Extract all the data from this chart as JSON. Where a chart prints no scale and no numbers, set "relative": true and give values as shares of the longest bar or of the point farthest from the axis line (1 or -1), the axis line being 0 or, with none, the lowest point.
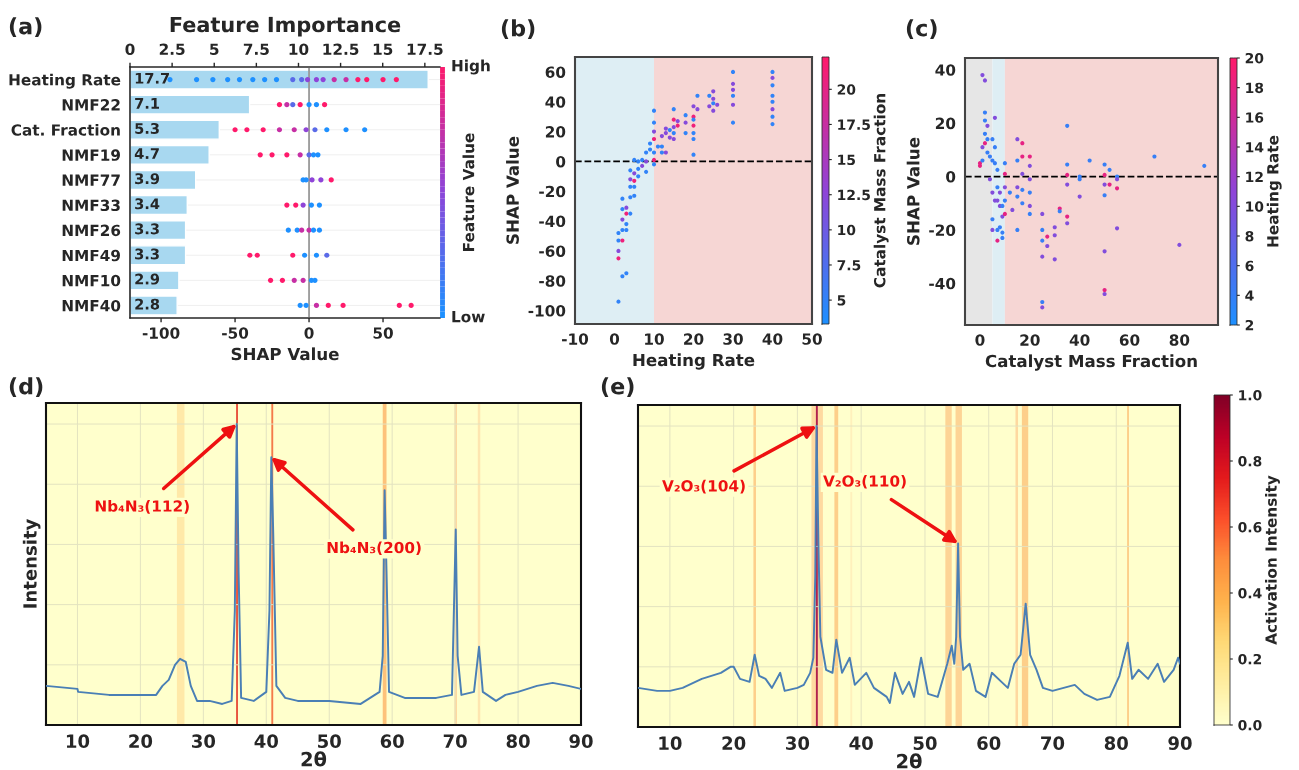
{
  "chart_data": [
    {
      "type": "bar",
      "orientation": "horizontal",
      "title": "(a)",
      "x2label": "Feature Importance",
      "xlabel": "SHAP Value",
      "clabel": "Feature Value",
      "categories": [
        "Heating Rate",
        "NMF22",
        "Cat. Fraction",
        "NMF19",
        "NMF77",
        "NMF33",
        "NMF26",
        "NMF49",
        "NMF10",
        "NMF40"
      ],
      "series": [
        {
          "type": "bar",
          "axis": "x2",
          "color": "#a8d8f0",
          "values": [
            17.7,
            7.1,
            5.3,
            4.7,
            3.9,
            3.4,
            3.3,
            3.3,
            2.9,
            2.8
          ],
          "value_labels": [
            "17.7",
            "7.1",
            "5.3",
            "4.7",
            "3.9",
            "3.4",
            "3.3",
            "3.3",
            "2.9",
            "2.8"
          ]
        },
        {
          "type": "scatter",
          "x": [
            "Heating Rate",
            "Heating Rate",
            "Heating Rate",
            "Heating Rate",
            "Heating Rate",
            "Heating Rate",
            "Heating Rate",
            "Heating Rate",
            "Heating Rate",
            "Heating Rate",
            "Heating Rate",
            "Heating Rate",
            "Heating Rate",
            "Heating Rate",
            "Heating Rate",
            "Heating Rate",
            "Heating Rate",
            "Heating Rate",
            "Heating Rate",
            "NMF22",
            "NMF22",
            "NMF22",
            "NMF22",
            "NMF22",
            "NMF22",
            "NMF22",
            "Cat. Fraction",
            "Cat. Fraction",
            "Cat. Fraction",
            "Cat. Fraction",
            "Cat. Fraction",
            "Cat. Fraction",
            "Cat. Fraction",
            "Cat. Fraction",
            "Cat. Fraction",
            "Cat. Fraction",
            "NMF19",
            "NMF19",
            "NMF19",
            "NMF19",
            "NMF19",
            "NMF19",
            "NMF19",
            "NMF77",
            "NMF77",
            "NMF77",
            "NMF77",
            "NMF77",
            "NMF33",
            "NMF33",
            "NMF33",
            "NMF33",
            "NMF33",
            "NMF26",
            "NMF26",
            "NMF26",
            "NMF26",
            "NMF26",
            "NMF26",
            "NMF49",
            "NMF49",
            "NMF49",
            "NMF49",
            "NMF49",
            "NMF49",
            "NMF10",
            "NMF10",
            "NMF10",
            "NMF10",
            "NMF10",
            "NMF10",
            "NMF40",
            "NMF40",
            "NMF40",
            "NMF40",
            "NMF40",
            "NMF40",
            "NMF40"
          ],
          "values": [
            -94,
            -76,
            -65,
            -55,
            -47,
            -38,
            -30,
            -22,
            -11,
            -5,
            -1,
            5,
            9.5,
            17,
            25,
            33,
            39,
            50,
            59,
            -20,
            -15,
            -11,
            -6,
            0,
            5,
            10.5,
            -50,
            -42,
            -31,
            -20,
            -10,
            -2,
            4,
            12,
            25,
            37.6,
            -33,
            -25,
            -15,
            -6,
            0,
            3,
            6,
            -4,
            -2,
            2,
            8,
            15,
            -15,
            -9,
            -4,
            1.6,
            7,
            -14,
            -8,
            -5,
            0,
            3,
            7,
            -40,
            -35,
            -11,
            -3,
            5,
            12,
            -26,
            -18,
            -10,
            -4,
            1.6,
            4,
            -6,
            -2,
            5,
            13,
            23,
            61,
            69
          ],
          "colors": [
            "#1e90ff",
            "#1e90ff",
            "#1e90ff",
            "#1e90ff",
            "#1e90ff",
            "#1e90ff",
            "#1e90ff",
            "#1e90ff",
            "#5a6ae8",
            "#5a6ae8",
            "#8f44d8",
            "#8f44d8",
            "#8f44d8",
            "#c72fa5",
            "#c72fa5",
            "#ff1a6b",
            "#ff1a6b",
            "#ff1a6b",
            "#ff1a6b",
            "#ff1a6b",
            "#c72fa5",
            "#5a6ae8",
            "#ff1a6b",
            "#1e90ff",
            "#1e90ff",
            "#ff1a6b",
            "#ff1a6b",
            "#ff1a6b",
            "#ff1a6b",
            "#c72fa5",
            "#c72fa5",
            "#8f44d8",
            "#5a6ae8",
            "#1e90ff",
            "#1e90ff",
            "#1e90ff",
            "#ff1a6b",
            "#ff1a6b",
            "#ff1a6b",
            "#c72fa5",
            "#5a6ae8",
            "#1e90ff",
            "#1e90ff",
            "#1e90ff",
            "#1e90ff",
            "#8f44d8",
            "#8f44d8",
            "#ff1a6b",
            "#ff1a6b",
            "#ff1a6b",
            "#8f44d8",
            "#1e90ff",
            "#1e90ff",
            "#1e90ff",
            "#1e90ff",
            "#c72fa5",
            "#c72fa5",
            "#1e90ff",
            "#1e90ff",
            "#ff1a6b",
            "#ff1a6b",
            "#ff1a6b",
            "#1e90ff",
            "#1e90ff",
            "#5a6ae8",
            "#ff1a6b",
            "#ff1a6b",
            "#c72fa5",
            "#c72fa5",
            "#1e90ff",
            "#1e90ff",
            "#1e90ff",
            "#1e90ff",
            "#c72fa5",
            "#ff1a6b",
            "#ff1a6b",
            "#ff1a6b",
            "#ff1a6b"
          ]
        }
      ],
      "xlim": [
        -121,
        88.5
      ],
      "xticks": [
        -100,
        -50,
        0,
        50
      ],
      "x2lim": [
        0,
        18.4
      ],
      "x2ticks": [
        0,
        2.5,
        5,
        7.5,
        10,
        12.5,
        15,
        17.5
      ],
      "annotations": [
        "High",
        "Low"
      ],
      "ref_lines": [
        {
          "axis": "x",
          "value": 0,
          "color": "#999999"
        }
      ],
      "grid": "y"
    },
    {
      "type": "scatter",
      "title": "(b)",
      "xlabel": "Heating Rate",
      "ylabel": "SHAP Value",
      "clabel": "Catalyst Mass Fraction",
      "marker": "circle",
      "x": [
        1,
        1,
        1,
        1,
        1,
        2,
        2,
        2,
        2,
        2,
        2,
        3,
        3,
        3,
        3,
        3,
        4,
        4,
        4,
        4,
        4,
        5,
        5,
        5,
        5,
        5,
        6,
        6,
        6,
        7,
        7,
        8,
        8,
        8,
        9,
        9,
        10,
        10,
        10,
        10,
        10,
        10,
        10,
        11,
        12,
        12,
        12,
        13,
        13,
        13,
        14,
        14,
        15,
        15,
        15,
        15,
        15,
        16,
        16,
        18,
        18,
        18,
        20,
        20,
        20,
        20,
        20,
        20,
        20,
        21,
        21,
        24,
        24,
        25,
        25,
        25,
        25,
        26,
        30,
        30,
        30,
        30,
        30,
        30,
        40,
        40,
        40,
        40,
        40,
        40,
        40,
        40
      ],
      "values": [
        -48,
        -53,
        -60,
        -65,
        -94,
        -25,
        -32,
        -39,
        -46,
        -53,
        -77,
        -31,
        -35,
        -42,
        -46,
        -75,
        -6,
        -12,
        -17,
        -24,
        -35,
        1,
        -8,
        -13,
        -17,
        -23,
        0,
        -5,
        -10,
        1,
        -3,
        6,
        0,
        -7,
        12,
        8,
        34,
        26,
        20,
        15,
        6,
        1,
        -2,
        10,
        17,
        10,
        6,
        22,
        19,
        6,
        21,
        16,
        35,
        28,
        23,
        19,
        15,
        27,
        24,
        31,
        26,
        19,
        37,
        30,
        28,
        24,
        19,
        15,
        4.5,
        44,
        35,
        44,
        37,
        47,
        42,
        39,
        34,
        38,
        60,
        52,
        48,
        44,
        38,
        26,
        60,
        56,
        51,
        44,
        40,
        35,
        30,
        25
      ],
      "cvalues": [
        5,
        5,
        12,
        21,
        5,
        5,
        5,
        12,
        5,
        21,
        5,
        12,
        21,
        5,
        5,
        5,
        5,
        12,
        5,
        5,
        5,
        5,
        12,
        21,
        5,
        5,
        5,
        5,
        5,
        5,
        12,
        5,
        12,
        5,
        5,
        5,
        5,
        5,
        12,
        21,
        5,
        21,
        5,
        5,
        12,
        5,
        5,
        12,
        12,
        12,
        5,
        12,
        5,
        21,
        12,
        5,
        12,
        12,
        21,
        5,
        12,
        5,
        12,
        21,
        5,
        21,
        5,
        5,
        5,
        5,
        12,
        5,
        12,
        12,
        12,
        5,
        12,
        12,
        5,
        12,
        12,
        5,
        12,
        5,
        5,
        12,
        5,
        5,
        5,
        12,
        5,
        5
      ],
      "xlim": [
        -10,
        50
      ],
      "xticks": [
        -10,
        0,
        10,
        20,
        30,
        40,
        50
      ],
      "ylim": [
        -109,
        70
      ],
      "yticks": [
        -100,
        -80,
        -60,
        -40,
        -20,
        0,
        20,
        40,
        60
      ],
      "clim": [
        3.3,
        22.3
      ],
      "cticks": [
        5,
        7.5,
        10,
        12.5,
        15,
        17.5,
        20
      ],
      "bands": [
        {
          "axis": "x",
          "from": -10,
          "to": 10,
          "color": "#deeef4"
        },
        {
          "axis": "x",
          "from": 10,
          "to": 50,
          "color": "#f6d6d4"
        }
      ],
      "ref_lines": [
        {
          "axis": "y",
          "value": 0,
          "color": "#000000",
          "line_style": "dashed"
        }
      ]
    },
    {
      "type": "scatter",
      "title": "(c)",
      "xlabel": "Catalyst Mass Fraction",
      "ylabel": "SHAP Value",
      "clabel": "Heating Rate",
      "marker": "circle",
      "x": [
        0,
        0,
        1,
        1,
        1,
        2,
        2,
        2,
        2,
        2,
        3,
        3,
        3,
        4,
        4,
        5,
        5,
        5,
        5,
        5,
        6,
        6,
        6,
        6,
        7,
        7,
        7,
        7,
        7,
        8,
        8,
        8,
        9,
        9,
        9,
        9,
        10,
        10,
        10,
        10,
        10,
        12,
        13,
        15,
        15,
        15,
        15,
        15,
        17,
        17,
        17,
        17,
        17,
        20,
        20,
        20,
        20,
        20,
        20,
        25,
        25,
        25,
        25,
        25,
        25,
        27,
        27,
        30,
        30,
        30,
        32,
        32,
        35,
        35,
        35,
        35,
        35,
        35,
        40,
        40,
        40,
        44,
        50,
        50,
        50,
        50,
        50,
        50,
        50,
        52,
        52,
        55,
        55,
        55,
        55,
        70,
        80,
        90
      ],
      "values": [
        4,
        5,
        38,
        11,
        6,
        36,
        24,
        21,
        16,
        12.5,
        19,
        14,
        9,
        7.5,
        -1,
        14,
        6,
        -6,
        -16,
        -20,
        22,
        11,
        5,
        -9,
        2.5,
        -4,
        -9,
        -20,
        -24,
        -6,
        -11,
        -19,
        -11,
        -15,
        -21,
        -23,
        5,
        1,
        -4,
        -9,
        -14,
        -6,
        -12.5,
        14,
        6,
        -4,
        -7.5,
        -20,
        12.5,
        7.5,
        1,
        -5,
        -10,
        7.5,
        4,
        -1,
        -6,
        -11,
        -14,
        -14,
        -20,
        -24,
        -30,
        -47,
        -49,
        -22.5,
        -26,
        -19,
        -22,
        -31,
        -12,
        -13,
        19,
        4.5,
        0.6,
        -3,
        -15,
        -17.5,
        0,
        -1,
        -7.5,
        6,
        4.5,
        0.6,
        -3,
        -7,
        -28,
        -42.5,
        -44,
        2.5,
        -3,
        0,
        -1,
        -4.4,
        -19.4,
        7.5,
        -25.6,
        4
      ],
      "cvalues": [
        18,
        18,
        10,
        10,
        4,
        10,
        4,
        4,
        4,
        18,
        10,
        4,
        4,
        4,
        10,
        4,
        4,
        10,
        4,
        10,
        10,
        4,
        4,
        10,
        4,
        4,
        10,
        4,
        18,
        10,
        10,
        4,
        4,
        10,
        4,
        4,
        4,
        18,
        10,
        4,
        18,
        4,
        10,
        10,
        4,
        10,
        4,
        4,
        18,
        18,
        10,
        4,
        4,
        18,
        10,
        10,
        4,
        10,
        4,
        10,
        4,
        4,
        10,
        4,
        10,
        18,
        10,
        10,
        10,
        10,
        18,
        4,
        4,
        4,
        18,
        10,
        18,
        10,
        4,
        4,
        10,
        4,
        4,
        18,
        10,
        4,
        10,
        18,
        10,
        4,
        18,
        4,
        10,
        18,
        10,
        4,
        10,
        4
      ],
      "xlim": [
        -6,
        95.5
      ],
      "xticks": [
        0,
        20,
        40,
        60,
        80
      ],
      "ylim": [
        -55.6,
        44.4
      ],
      "yticks": [
        -40,
        -20,
        0,
        20,
        40
      ],
      "clim": [
        2,
        20
      ],
      "cticks": [
        2,
        4,
        6,
        8,
        10,
        12,
        14,
        16,
        18,
        20
      ],
      "bands": [
        {
          "axis": "x",
          "from": -6,
          "to": 5,
          "color": "#e6e6e6"
        },
        {
          "axis": "x",
          "from": 5,
          "to": 10,
          "color": "#deeef4"
        },
        {
          "axis": "x",
          "from": 10,
          "to": 95.5,
          "color": "#f6d6d4"
        }
      ],
      "ref_lines": [
        {
          "axis": "y",
          "value": 0,
          "color": "#000000",
          "line_style": "dashed"
        }
      ]
    },
    {
      "type": "line",
      "title": "(d)",
      "xlabel": "2θ",
      "ylabel": "Intensity",
      "relative": true,
      "grid": true,
      "x": [
        5,
        10,
        10.1,
        15,
        20,
        22.5,
        23.5,
        24.5,
        25.5,
        26.3,
        27.2,
        28,
        29,
        31,
        33,
        34.5,
        35,
        35.3,
        35.6,
        36,
        38,
        40,
        40.5,
        40.8,
        41.1,
        41.6,
        43,
        45,
        50,
        55,
        58,
        58.5,
        58.8,
        59.1,
        59.5,
        62,
        67,
        69.5,
        70.1,
        70.4,
        71,
        73,
        73.8,
        74.4,
        76.5,
        78,
        80,
        83,
        85.5,
        88,
        90
      ],
      "series": [
        {
          "color": "#4a7fb5",
          "values": [
            0.13,
            0.12,
            0.11,
            0.1,
            0.1,
            0.1,
            0.13,
            0.15,
            0.2,
            0.22,
            0.21,
            0.13,
            0.08,
            0.08,
            0.07,
            0.08,
            0.38,
            1.0,
            0.51,
            0.09,
            0.08,
            0.11,
            0.38,
            0.89,
            0.64,
            0.13,
            0.09,
            0.08,
            0.08,
            0.07,
            0.11,
            0.23,
            0.78,
            0.51,
            0.11,
            0.09,
            0.09,
            0.1,
            0.65,
            0.23,
            0.1,
            0.11,
            0.26,
            0.11,
            0.08,
            0.1,
            0.11,
            0.13,
            0.14,
            0.13,
            0.12
          ]
        }
      ],
      "xlim": [
        5,
        90
      ],
      "xticks": [
        10,
        20,
        30,
        40,
        50,
        60,
        70,
        80,
        90
      ],
      "bands": [
        {
          "axis": "x",
          "from": 25.8,
          "to": 27.0,
          "color": "#ffe9a8"
        },
        {
          "axis": "x",
          "from": 35.2,
          "to": 35.5,
          "color": "#e8503a"
        },
        {
          "axis": "x",
          "from": 40.8,
          "to": 41.1,
          "color": "#f47a4a"
        },
        {
          "axis": "x",
          "from": 58.5,
          "to": 59.1,
          "color": "#fdc27a"
        },
        {
          "axis": "x",
          "from": 69.9,
          "to": 70.3,
          "color": "#fed9a0"
        },
        {
          "axis": "x",
          "from": 73.6,
          "to": 74.0,
          "color": "#fee6b0"
        }
      ],
      "annotations": [
        {
          "text": "Nb₄N₃(112)",
          "x": 35.3,
          "y": 1.0
        },
        {
          "text": "Nb₄N₃(200)",
          "x": 40.8,
          "y": 0.89
        }
      ]
    },
    {
      "type": "line",
      "title": "(e)",
      "xlabel": "2θ",
      "relative": true,
      "grid": true,
      "clabel": "Activation Intensity",
      "x": [
        5,
        8,
        10,
        12,
        15,
        18,
        19.5,
        20,
        21,
        22.5,
        23.3,
        24,
        25,
        26,
        27.3,
        28,
        30,
        31,
        32,
        32.5,
        32.8,
        33,
        33.3,
        33.6,
        34.5,
        35.5,
        36.1,
        37,
        38.2,
        39,
        40.8,
        42,
        44,
        44.5,
        45.3,
        46.5,
        47.5,
        48.3,
        49.4,
        50.5,
        52,
        53.5,
        54.2,
        54.6,
        54.9,
        55.2,
        55.5,
        56,
        57,
        58,
        59.5,
        60.5,
        62,
        63,
        64,
        65,
        65.8,
        66.5,
        67.5,
        68.5,
        70,
        73.5,
        75,
        77,
        79,
        80.5,
        81.8,
        82.5,
        83.5,
        85,
        86.5,
        87.5,
        89,
        89.7,
        90
      ],
      "series": [
        {
          "color": "#4a7fb5",
          "values": [
            0.13,
            0.12,
            0.12,
            0.13,
            0.16,
            0.18,
            0.2,
            0.2,
            0.16,
            0.15,
            0.24,
            0.17,
            0.16,
            0.13,
            0.18,
            0.12,
            0.13,
            0.14,
            0.18,
            0.23,
            0.5,
            1.0,
            0.6,
            0.3,
            0.19,
            0.18,
            0.29,
            0.18,
            0.23,
            0.14,
            0.18,
            0.13,
            0.1,
            0.08,
            0.18,
            0.11,
            0.15,
            0.1,
            0.23,
            0.11,
            0.1,
            0.21,
            0.27,
            0.21,
            0.3,
            0.61,
            0.3,
            0.19,
            0.21,
            0.12,
            0.1,
            0.18,
            0.15,
            0.13,
            0.21,
            0.24,
            0.41,
            0.24,
            0.19,
            0.13,
            0.12,
            0.14,
            0.11,
            0.09,
            0.1,
            0.17,
            0.28,
            0.16,
            0.19,
            0.16,
            0.21,
            0.15,
            0.19,
            0.23,
            0.21
          ]
        }
      ],
      "xlim": [
        5,
        90
      ],
      "xticks": [
        10,
        20,
        30,
        40,
        50,
        60,
        70,
        80,
        90
      ],
      "clim": [
        0,
        1
      ],
      "cticks": [
        {
          "value": 0,
          "label": "0.0"
        },
        {
          "value": 0.2,
          "label": "0.2"
        },
        {
          "value": 0.4,
          "label": "0.4"
        },
        {
          "value": 0.6,
          "label": "0.6"
        },
        {
          "value": 0.8,
          "label": "0.8"
        },
        {
          "value": 1,
          "label": "1.0"
        }
      ],
      "bands": [
        {
          "axis": "x",
          "from": 23.1,
          "to": 23.5,
          "color": "#fdcf8a"
        },
        {
          "axis": "x",
          "from": 32.2,
          "to": 34.0,
          "color": "#fed9a0"
        },
        {
          "axis": "x",
          "from": 32.9,
          "to": 33.2,
          "color": "#b0204e"
        },
        {
          "axis": "x",
          "from": 35.8,
          "to": 36.4,
          "color": "#fdcf8a"
        },
        {
          "axis": "x",
          "from": 38.3,
          "to": 38.6,
          "color": "#fff0bc"
        },
        {
          "axis": "x",
          "from": 53.2,
          "to": 54.2,
          "color": "#fdd495"
        },
        {
          "axis": "x",
          "from": 54.8,
          "to": 55.8,
          "color": "#fdd495"
        },
        {
          "axis": "x",
          "from": 64.2,
          "to": 64.6,
          "color": "#fed9a0"
        },
        {
          "axis": "x",
          "from": 65.2,
          "to": 66.2,
          "color": "#fdcf8a"
        },
        {
          "axis": "x",
          "from": 81.7,
          "to": 82.0,
          "color": "#fdcf8a"
        }
      ],
      "annotations": [
        {
          "text": "V₂O₃(104)",
          "x": 33.0,
          "y": 1.0
        },
        {
          "text": "V₂O₃(110)",
          "x": 55.2,
          "y": 0.61
        }
      ]
    }
  ]
}
